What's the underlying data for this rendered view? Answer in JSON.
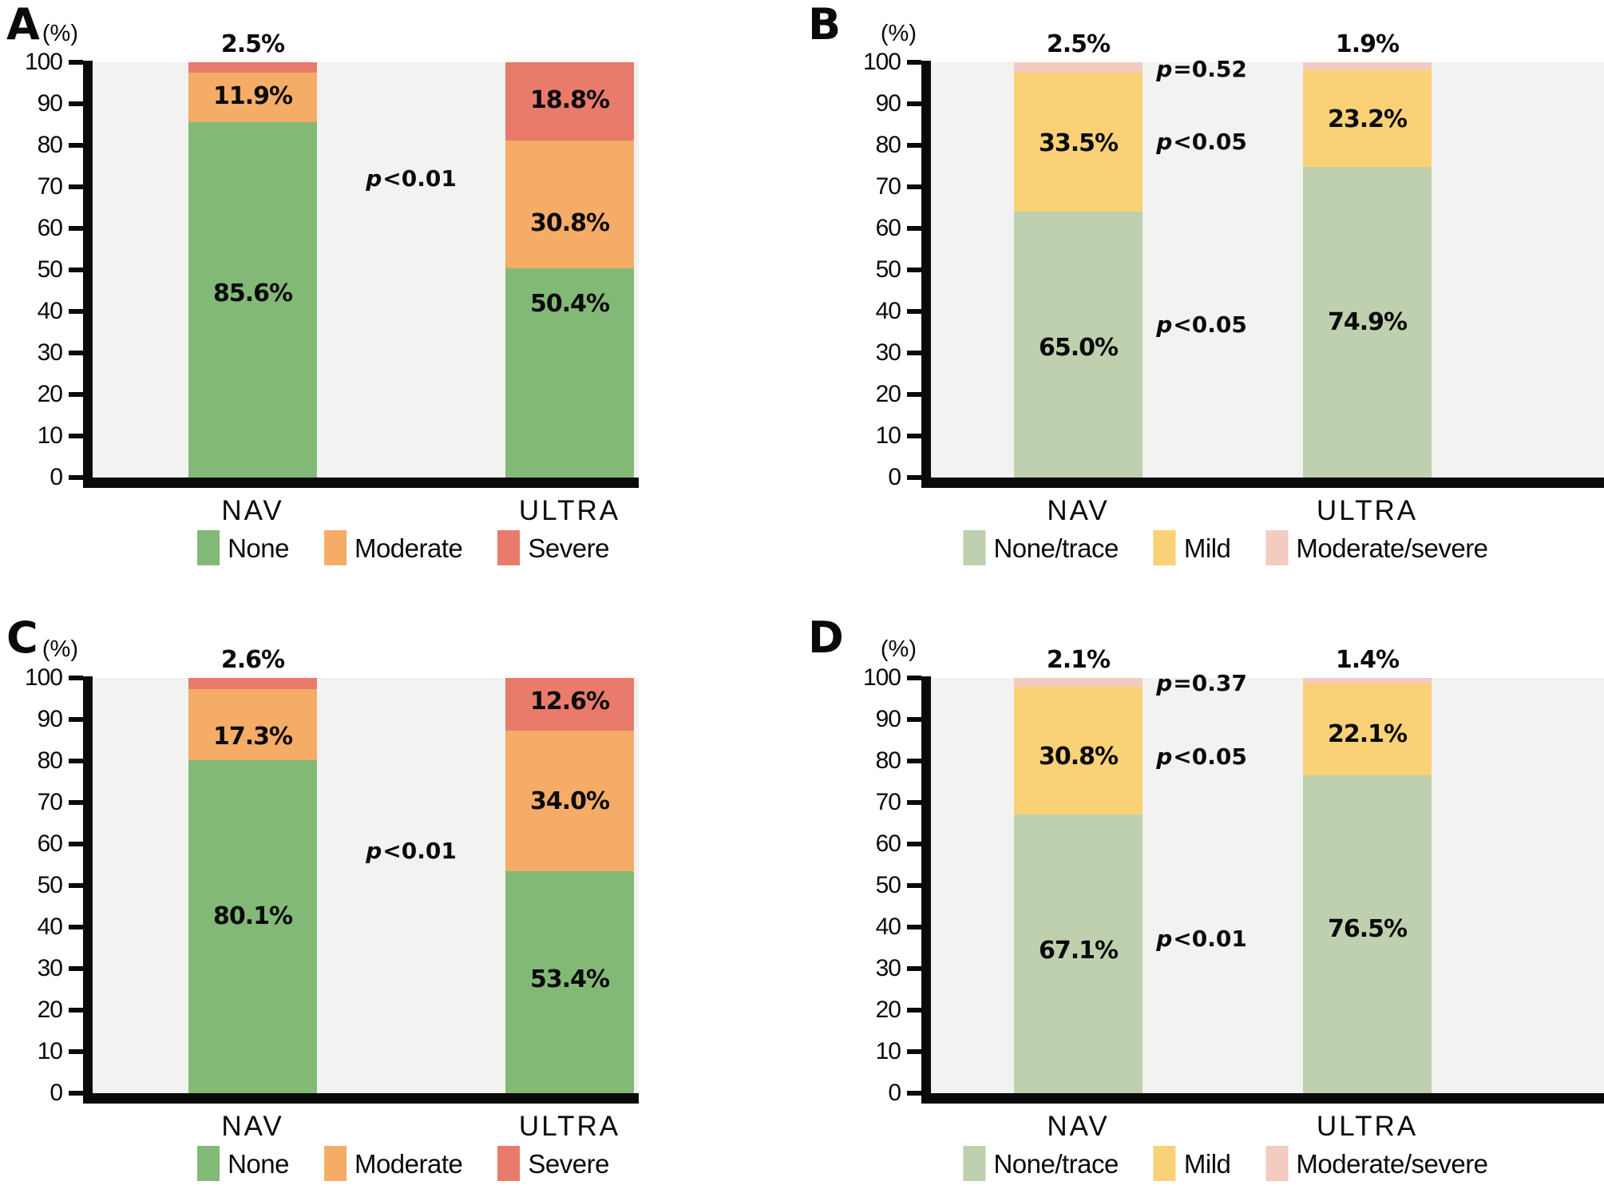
{
  "colors": {
    "plot_bg": "#f2f2f1",
    "axis": "#0a0a0a",
    "none": "#83b977",
    "moderate": "#f4ac67",
    "severe": "#e87b6c",
    "none_trace": "#bed0ad",
    "mild": "#fad176",
    "moderate_severe": "#f3cbc1"
  },
  "ylabel": "(%)",
  "yticks": [
    "100",
    "90",
    "80",
    "70",
    "60",
    "50",
    "40",
    "30",
    "20",
    "10",
    "0"
  ],
  "chart_data": [
    {
      "id": "A",
      "type": "bar",
      "stacked": true,
      "title": "A",
      "side": "left",
      "row": 0,
      "categories": [
        "NAV",
        "ULTRA"
      ],
      "ylabel": "(%)",
      "ylim": [
        0,
        100
      ],
      "grid": false,
      "legend_position": "bottom",
      "legend": [
        {
          "name": "None",
          "color_key": "none"
        },
        {
          "name": "Moderate",
          "color_key": "moderate"
        },
        {
          "name": "Severe",
          "color_key": "severe"
        }
      ],
      "series": [
        {
          "name": "None",
          "values": [
            85.6,
            50.4
          ]
        },
        {
          "name": "Moderate",
          "values": [
            11.9,
            30.8
          ]
        },
        {
          "name": "Severe",
          "values": [
            2.5,
            18.8
          ]
        }
      ],
      "bar_labels": [
        [
          {
            "text": "85.6%",
            "y": 0.56
          },
          {
            "text": "11.9%",
            "y": 0.085
          },
          {
            "text": "2.5%",
            "y": "above"
          }
        ],
        [
          {
            "text": "50.4%",
            "y": 0.585
          },
          {
            "text": "30.8%",
            "y": 0.39
          },
          {
            "text": "18.8%",
            "y": 0.095
          }
        ]
      ],
      "p_values": [
        {
          "sym": "p",
          "rest": "<0.01",
          "y": 0.283
        }
      ]
    },
    {
      "id": "B",
      "type": "bar",
      "stacked": true,
      "title": "B",
      "side": "right",
      "row": 0,
      "categories": [
        "NAV",
        "ULTRA"
      ],
      "ylabel": "(%)",
      "ylim": [
        0,
        100
      ],
      "grid": false,
      "legend_position": "bottom",
      "legend": [
        {
          "name": "None/trace",
          "color_key": "none_trace"
        },
        {
          "name": "Mild",
          "color_key": "mild"
        },
        {
          "name": "Moderate/severe",
          "color_key": "moderate_severe"
        }
      ],
      "series": [
        {
          "name": "None/trace",
          "values": [
            65.0,
            74.9
          ]
        },
        {
          "name": "Mild",
          "values": [
            33.5,
            23.2
          ]
        },
        {
          "name": "Moderate/severe",
          "values": [
            2.5,
            1.9
          ]
        }
      ],
      "bar_labels": [
        [
          {
            "text": "65.0%",
            "y": 0.69
          },
          {
            "text": "33.5%",
            "y": 0.198
          },
          {
            "text": "2.5%",
            "y": "above"
          }
        ],
        [
          {
            "text": "74.9%",
            "y": 0.628
          },
          {
            "text": "23.2%",
            "y": 0.14
          },
          {
            "text": "1.9%",
            "y": "above"
          }
        ]
      ],
      "p_values": [
        {
          "sym": "p",
          "rest": "=0.52",
          "y": 0.02
        },
        {
          "sym": "p",
          "rest": "<0.05",
          "y": 0.195
        },
        {
          "sym": "p",
          "rest": "<0.05",
          "y": 0.635
        }
      ]
    },
    {
      "id": "C",
      "type": "bar",
      "stacked": true,
      "title": "C",
      "side": "left",
      "row": 1,
      "categories": [
        "NAV",
        "ULTRA"
      ],
      "ylabel": "(%)",
      "ylim": [
        0,
        100
      ],
      "grid": false,
      "legend_position": "bottom",
      "legend": [
        {
          "name": "None",
          "color_key": "none"
        },
        {
          "name": "Moderate",
          "color_key": "moderate"
        },
        {
          "name": "Severe",
          "color_key": "severe"
        }
      ],
      "series": [
        {
          "name": "None",
          "values": [
            80.1,
            53.4
          ]
        },
        {
          "name": "Moderate",
          "values": [
            17.3,
            34.0
          ]
        },
        {
          "name": "Severe",
          "values": [
            2.6,
            12.6
          ]
        }
      ],
      "bar_labels": [
        [
          {
            "text": "80.1%",
            "y": 0.577
          },
          {
            "text": "17.3%",
            "y": 0.144
          },
          {
            "text": "2.6%",
            "y": "above"
          }
        ],
        [
          {
            "text": "53.4%",
            "y": 0.729
          },
          {
            "text": "34.0%",
            "y": 0.3
          },
          {
            "text": "12.6%",
            "y": 0.06
          }
        ]
      ],
      "p_values": [
        {
          "sym": "p",
          "rest": "<0.01",
          "y": 0.419
        }
      ]
    },
    {
      "id": "D",
      "type": "bar",
      "stacked": true,
      "title": "D",
      "side": "right",
      "row": 1,
      "categories": [
        "NAV",
        "ULTRA"
      ],
      "ylabel": "(%)",
      "ylim": [
        0,
        100
      ],
      "grid": false,
      "legend_position": "bottom",
      "legend": [
        {
          "name": "None/trace",
          "color_key": "none_trace"
        },
        {
          "name": "Mild",
          "color_key": "mild"
        },
        {
          "name": "Moderate/severe",
          "color_key": "moderate_severe"
        }
      ],
      "series": [
        {
          "name": "None/trace",
          "values": [
            67.1,
            76.5
          ]
        },
        {
          "name": "Mild",
          "values": [
            30.8,
            22.1
          ]
        },
        {
          "name": "Moderate/severe",
          "values": [
            2.1,
            1.4
          ]
        }
      ],
      "bar_labels": [
        [
          {
            "text": "67.1%",
            "y": 0.66
          },
          {
            "text": "30.8%",
            "y": 0.192
          },
          {
            "text": "2.1%",
            "y": "above"
          }
        ],
        [
          {
            "text": "76.5%",
            "y": 0.608
          },
          {
            "text": "22.1%",
            "y": 0.138
          },
          {
            "text": "1.4%",
            "y": "above"
          }
        ]
      ],
      "p_values": [
        {
          "sym": "p",
          "rest": "=0.37",
          "y": 0.015
        },
        {
          "sym": "p",
          "rest": "<0.05",
          "y": 0.192
        },
        {
          "sym": "p",
          "rest": "<0.01",
          "y": 0.63
        }
      ]
    }
  ]
}
